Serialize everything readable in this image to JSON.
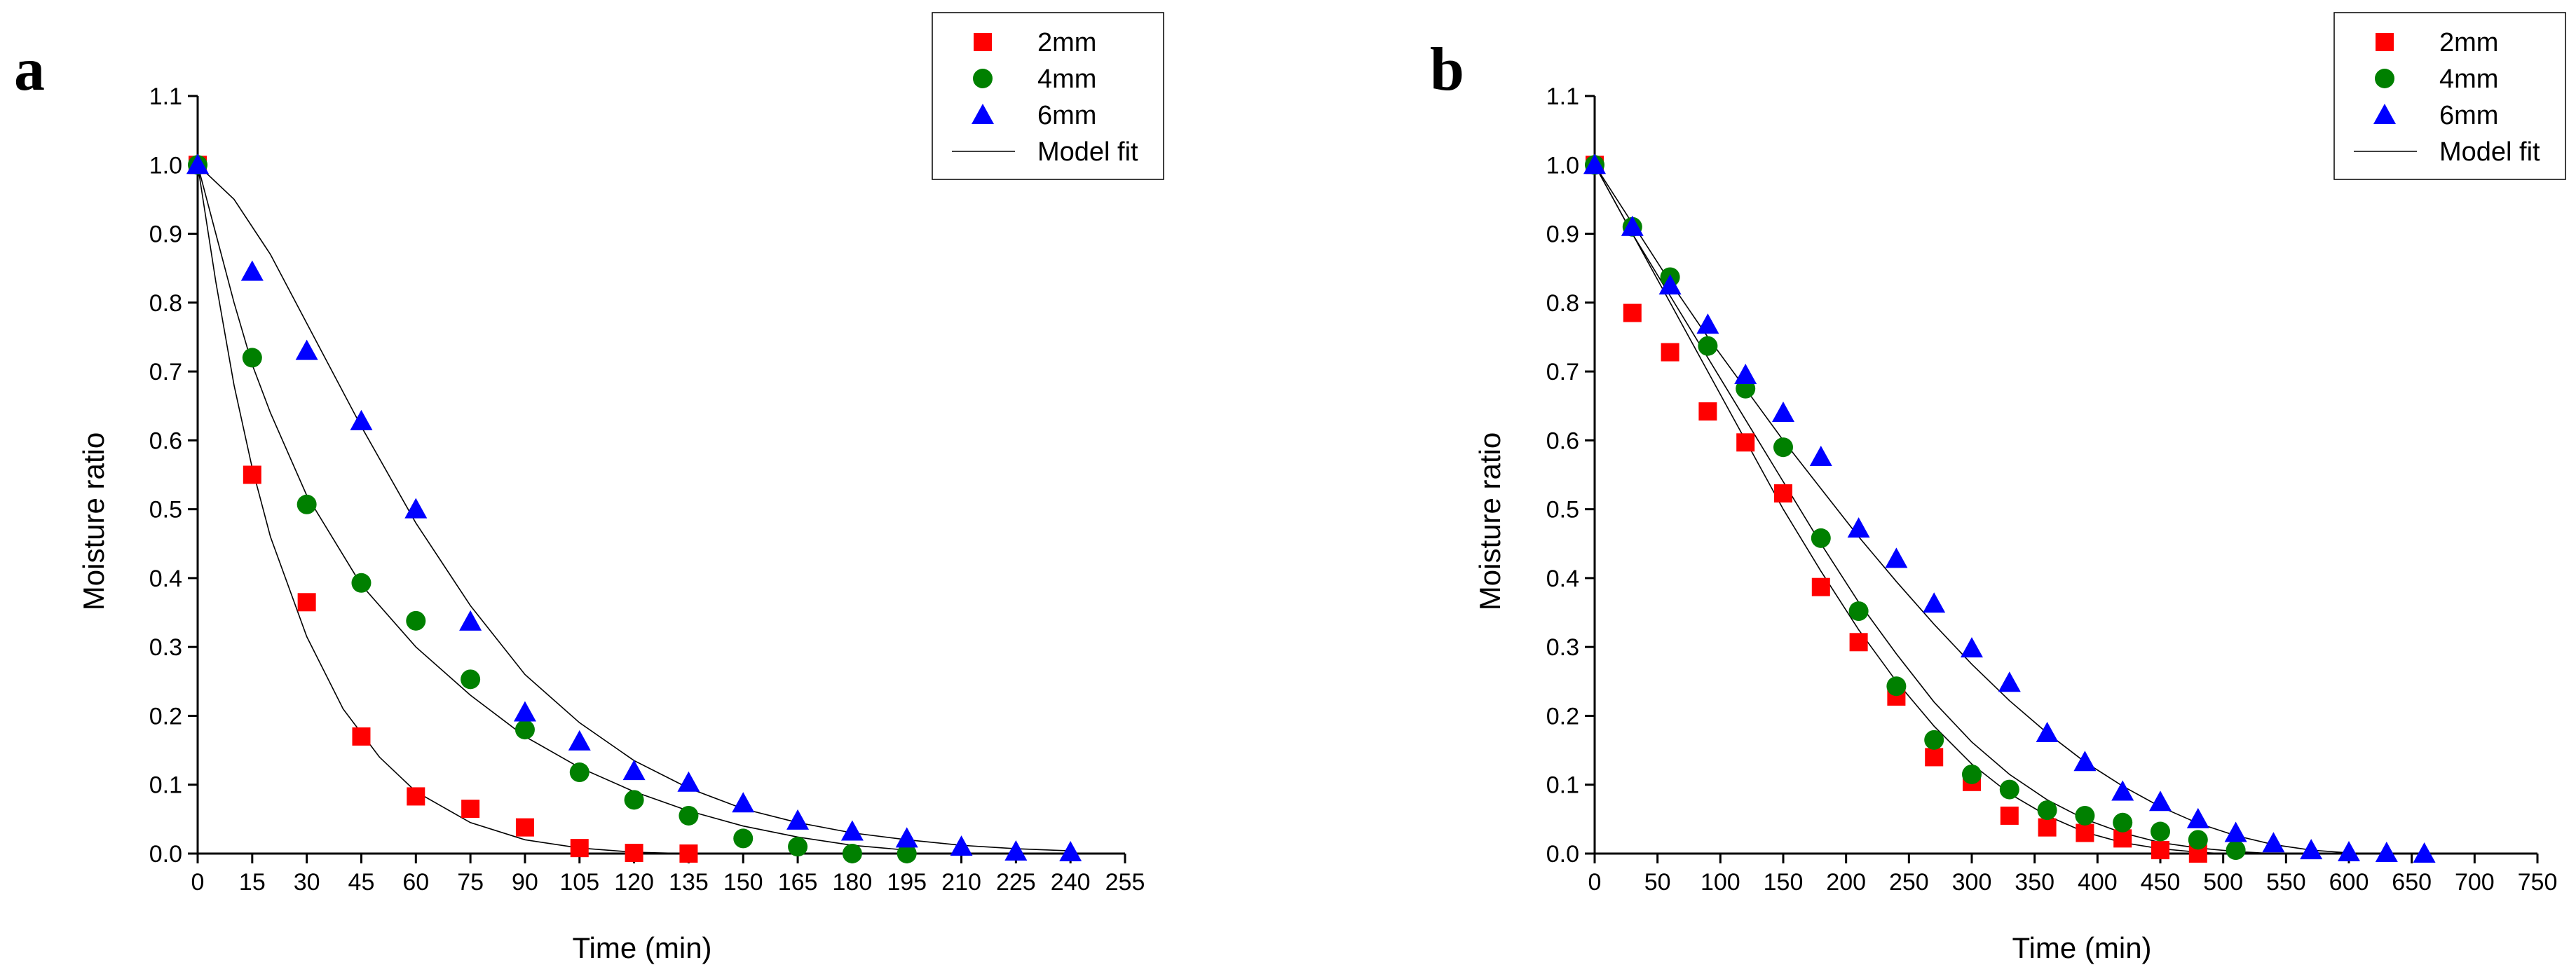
{
  "chart_data": [
    {
      "type": "scatter",
      "panel_label": "a",
      "xlabel": "Time (min)",
      "ylabel": "Moisture ratio",
      "xlim": [
        0,
        255
      ],
      "ylim": [
        0,
        1.1
      ],
      "xticks": [
        0,
        15,
        30,
        45,
        60,
        75,
        90,
        105,
        120,
        135,
        150,
        165,
        180,
        195,
        210,
        225,
        240,
        255
      ],
      "yticks": [
        0.0,
        0.1,
        0.2,
        0.3,
        0.4,
        0.5,
        0.6,
        0.7,
        0.8,
        0.9,
        1.0,
        1.1
      ],
      "legend_position": "top-right",
      "grid": false,
      "series": [
        {
          "name": "2mm",
          "marker": "square",
          "color": "#ff0000",
          "x": [
            0,
            15,
            30,
            45,
            60,
            75,
            90,
            105,
            120,
            135
          ],
          "y": [
            1.0,
            0.55,
            0.365,
            0.17,
            0.083,
            0.065,
            0.038,
            0.008,
            0.001,
            0.0
          ]
        },
        {
          "name": "4mm",
          "marker": "circle",
          "color": "#008000",
          "x": [
            0,
            15,
            30,
            45,
            60,
            75,
            90,
            105,
            120,
            135,
            150,
            165,
            180,
            195
          ],
          "y": [
            1.0,
            0.72,
            0.507,
            0.393,
            0.338,
            0.253,
            0.18,
            0.118,
            0.078,
            0.055,
            0.022,
            0.01,
            0.0,
            0.0
          ]
        },
        {
          "name": "6mm",
          "marker": "triangle",
          "color": "#0000ff",
          "x": [
            0,
            15,
            30,
            45,
            60,
            75,
            90,
            105,
            120,
            135,
            150,
            165,
            180,
            195,
            210,
            225,
            240
          ],
          "y": [
            1.0,
            0.845,
            0.73,
            0.628,
            0.5,
            0.337,
            0.205,
            0.163,
            0.12,
            0.103,
            0.073,
            0.048,
            0.032,
            0.022,
            0.01,
            0.003,
            0.002
          ]
        }
      ],
      "model_fit": {
        "name": "Model fit",
        "curves": [
          {
            "for": "2mm",
            "x": [
              0,
              5,
              10,
              15,
              20,
              30,
              40,
              50,
              60,
              75,
              90,
              105,
              120,
              135
            ],
            "y": [
              1.0,
              0.83,
              0.68,
              0.56,
              0.46,
              0.315,
              0.21,
              0.14,
              0.09,
              0.045,
              0.02,
              0.008,
              0.002,
              0.0
            ]
          },
          {
            "for": "4mm",
            "x": [
              0,
              5,
              10,
              15,
              20,
              30,
              45,
              60,
              75,
              90,
              105,
              120,
              135,
              150,
              165,
              180,
              195
            ],
            "y": [
              1.0,
              0.9,
              0.8,
              0.71,
              0.64,
              0.52,
              0.39,
              0.3,
              0.23,
              0.17,
              0.125,
              0.09,
              0.062,
              0.04,
              0.024,
              0.012,
              0.005
            ]
          },
          {
            "for": "6mm",
            "x": [
              0,
              10,
              20,
              30,
              45,
              60,
              75,
              90,
              105,
              120,
              135,
              150,
              165,
              180,
              195,
              210,
              225,
              240
            ],
            "y": [
              1.0,
              0.95,
              0.87,
              0.77,
              0.62,
              0.48,
              0.36,
              0.26,
              0.19,
              0.135,
              0.095,
              0.065,
              0.045,
              0.03,
              0.02,
              0.012,
              0.007,
              0.004
            ]
          }
        ]
      }
    },
    {
      "type": "scatter",
      "panel_label": "b",
      "xlabel": "Time (min)",
      "ylabel": "Moisture ratio",
      "xlim": [
        0,
        750
      ],
      "ylim": [
        0,
        1.1
      ],
      "xticks": [
        0,
        50,
        100,
        150,
        200,
        250,
        300,
        350,
        400,
        450,
        500,
        550,
        600,
        650,
        700,
        750
      ],
      "yticks": [
        0.0,
        0.1,
        0.2,
        0.3,
        0.4,
        0.5,
        0.6,
        0.7,
        0.8,
        0.9,
        1.0,
        1.1
      ],
      "legend_position": "top-right",
      "grid": false,
      "series": [
        {
          "name": "2mm",
          "marker": "square",
          "color": "#ff0000",
          "x": [
            0,
            30,
            60,
            90,
            120,
            150,
            180,
            210,
            240,
            270,
            300,
            330,
            360,
            390,
            420,
            450,
            480
          ],
          "y": [
            1.0,
            0.785,
            0.728,
            0.642,
            0.597,
            0.523,
            0.387,
            0.307,
            0.228,
            0.14,
            0.104,
            0.055,
            0.038,
            0.03,
            0.022,
            0.005,
            0.0
          ]
        },
        {
          "name": "4mm",
          "marker": "circle",
          "color": "#008000",
          "x": [
            0,
            30,
            60,
            90,
            120,
            150,
            180,
            210,
            240,
            270,
            300,
            330,
            360,
            390,
            420,
            450,
            480,
            510
          ],
          "y": [
            1.0,
            0.91,
            0.837,
            0.737,
            0.675,
            0.59,
            0.458,
            0.352,
            0.243,
            0.165,
            0.115,
            0.093,
            0.063,
            0.055,
            0.045,
            0.032,
            0.02,
            0.005
          ]
        },
        {
          "name": "6mm",
          "marker": "triangle",
          "color": "#0000ff",
          "x": [
            0,
            30,
            60,
            90,
            120,
            150,
            180,
            210,
            240,
            270,
            300,
            330,
            360,
            390,
            420,
            450,
            480,
            510,
            540,
            570,
            600,
            630,
            660
          ],
          "y": [
            1.0,
            0.91,
            0.825,
            0.768,
            0.695,
            0.64,
            0.576,
            0.472,
            0.428,
            0.363,
            0.298,
            0.248,
            0.175,
            0.133,
            0.09,
            0.075,
            0.05,
            0.03,
            0.015,
            0.005,
            0.002,
            0.001,
            0.0
          ]
        }
      ],
      "model_fit": {
        "name": "Model fit",
        "curves": [
          {
            "for": "2mm",
            "x": [
              0,
              30,
              60,
              90,
              120,
              150,
              180,
              210,
              240,
              270,
              300,
              330,
              360,
              390,
              420,
              450,
              480,
              500
            ],
            "y": [
              1.0,
              0.9,
              0.8,
              0.7,
              0.6,
              0.5,
              0.41,
              0.325,
              0.25,
              0.185,
              0.13,
              0.087,
              0.055,
              0.031,
              0.016,
              0.007,
              0.002,
              0.0
            ]
          },
          {
            "for": "4mm",
            "x": [
              0,
              30,
              60,
              90,
              120,
              150,
              180,
              210,
              240,
              270,
              300,
              330,
              360,
              390,
              420,
              450,
              480,
              510,
              540
            ],
            "y": [
              1.0,
              0.9,
              0.81,
              0.72,
              0.63,
              0.54,
              0.45,
              0.365,
              0.29,
              0.22,
              0.162,
              0.115,
              0.078,
              0.05,
              0.03,
              0.016,
              0.008,
              0.003,
              0.0
            ]
          },
          {
            "for": "6mm",
            "x": [
              0,
              30,
              60,
              90,
              120,
              150,
              180,
              210,
              240,
              270,
              300,
              330,
              360,
              390,
              420,
              450,
              480,
              510,
              540,
              570,
              600
            ],
            "y": [
              1.0,
              0.915,
              0.83,
              0.75,
              0.675,
              0.6,
              0.53,
              0.46,
              0.395,
              0.333,
              0.275,
              0.222,
              0.175,
              0.133,
              0.098,
              0.068,
              0.044,
              0.026,
              0.013,
              0.005,
              0.001
            ]
          }
        ]
      }
    }
  ]
}
